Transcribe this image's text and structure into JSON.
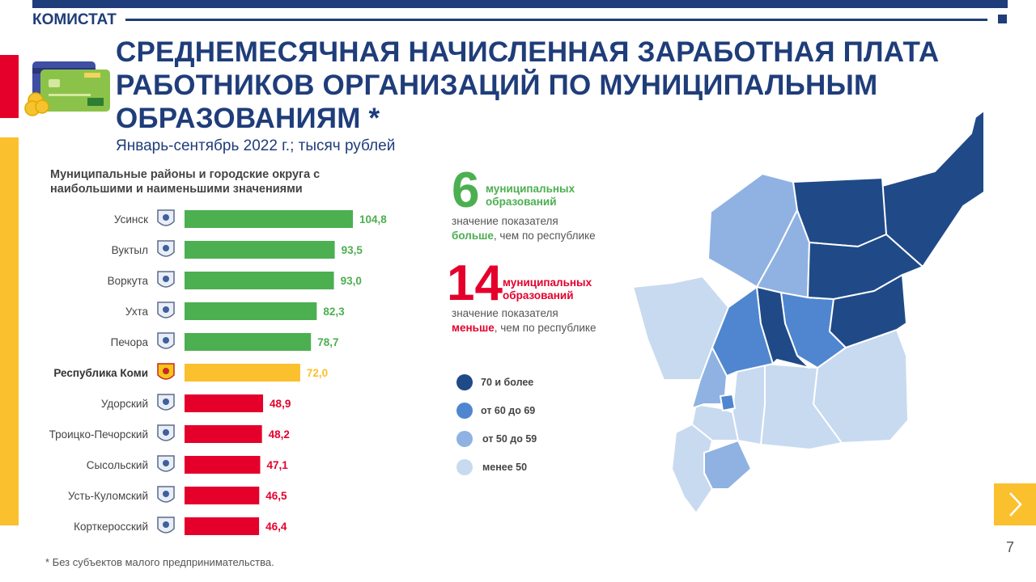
{
  "header": {
    "brand": "КОМИСТАТ",
    "title": "СРЕДНЕМЕСЯЧНАЯ НАЧИСЛЕННАЯ ЗАРАБОТНАЯ ПЛАТА РАБОТНИКОВ ОРГАНИЗАЦИЙ ПО МУНИЦИПАЛЬНЫМ ОБРАЗОВАНИЯМ *",
    "subtitle": "Январь-сентябрь 2022 г.; тысяч рублей"
  },
  "colors": {
    "brand_blue": "#1f3d7a",
    "above": "#4caf50",
    "republic": "#fbc02d",
    "below": "#e4002b"
  },
  "chart_data": {
    "type": "bar",
    "orientation": "horizontal",
    "title": "Муниципальные районы и городские округа с наибольшими и наименьшими значениями",
    "categories": [
      "Усинск",
      "Вуктыл",
      "Воркута",
      "Ухта",
      "Печора",
      "Республика Коми",
      "Удорский",
      "Троицко-Печорский",
      "Сысольский",
      "Усть-Куломский",
      "Корткеросский"
    ],
    "values": [
      104.8,
      93.5,
      93.0,
      82.3,
      78.7,
      72.0,
      48.9,
      48.2,
      47.1,
      46.5,
      46.4
    ],
    "value_labels": [
      "104,8",
      "93,5",
      "93,0",
      "82,3",
      "78,7",
      "72,0",
      "48,9",
      "48,2",
      "47,1",
      "46,5",
      "46,4"
    ],
    "groups": [
      "above",
      "above",
      "above",
      "above",
      "above",
      "republic",
      "below",
      "below",
      "below",
      "below",
      "below"
    ],
    "xlim": [
      0,
      120
    ],
    "grid": false
  },
  "stats": {
    "above": {
      "count": "6",
      "label": "муниципальных образований",
      "line1": "значение показателя",
      "emph": "больше",
      "rest": ", чем по республике"
    },
    "below": {
      "count": "14",
      "label": "муниципальных образований",
      "line1": "значение показателя",
      "emph": "меньше",
      "rest": ", чем по республике"
    }
  },
  "map_legend": [
    {
      "label": "70 и более",
      "color": "#1f4a87"
    },
    {
      "label": "от 60 до 69",
      "color": "#4f86cf"
    },
    {
      "label": "от 50 до 59",
      "color": "#8fb2e2"
    },
    {
      "label": "менее 50",
      "color": "#c8daf0"
    }
  ],
  "footnote": "* Без субъектов малого предпринимательства.",
  "page_number": "7"
}
